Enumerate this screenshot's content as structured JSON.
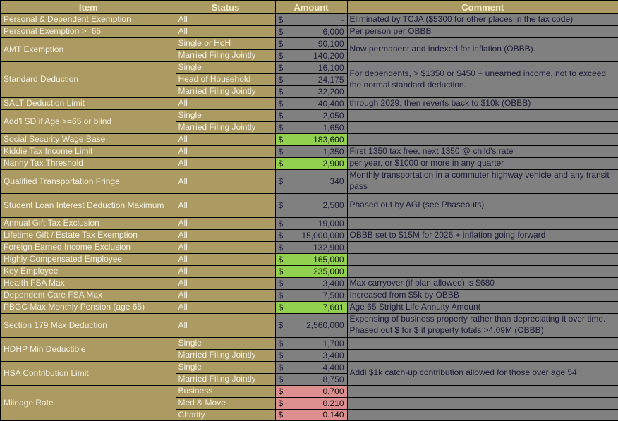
{
  "table": {
    "headers": [
      "Item",
      "Status",
      "Amount",
      "Comment"
    ],
    "currency": "$",
    "colors": {
      "khaki_bg": "#ab9a62",
      "header_text": "#f5eecd",
      "cell_text": "#f3efe0",
      "gray_bg": "#808080",
      "value_text": "#1b1b38",
      "green_bg": "#92d050",
      "pink_bg": "#dd8f8f",
      "border": "#000000"
    },
    "groups": [
      {
        "item": "Personal & Dependent Exemption",
        "rows": [
          {
            "status": "All",
            "amount": "-",
            "color": "gray"
          }
        ],
        "comments": [
          {
            "text": "Eliminated by TCJA ($5300 for other places in the tax code)",
            "span": 1
          }
        ]
      },
      {
        "item": "Personal Exemption >=65",
        "rows": [
          {
            "status": "All",
            "amount": "6,000",
            "color": "gray"
          }
        ],
        "comments": [
          {
            "text": "Per person per OBBB",
            "span": 1
          }
        ]
      },
      {
        "item": "AMT Exemption",
        "rows": [
          {
            "status": "Single or HoH",
            "amount": "90,100",
            "color": "gray"
          },
          {
            "status": "Married Filing Jointly",
            "amount": "140,200",
            "color": "gray"
          }
        ],
        "comments": [
          {
            "text": "Now permanent and indexed for inflation (OBBB).",
            "span": 2
          }
        ]
      },
      {
        "item": "Standard Deduction",
        "rows": [
          {
            "status": "Single",
            "amount": "16,100",
            "color": "gray"
          },
          {
            "status": "Head of Household",
            "amount": "24,175",
            "color": "gray"
          },
          {
            "status": "Married Filing Jointly",
            "amount": "32,200",
            "color": "gray"
          }
        ],
        "comments": [
          {
            "text": "For dependents, > $1350 or $450 + unearned income, not to exceed the normal standard deduction.",
            "span": 3
          }
        ]
      },
      {
        "item": "SALT Deduction Limit",
        "rows": [
          {
            "status": "All",
            "amount": "40,400",
            "color": "gray"
          }
        ],
        "comments": [
          {
            "text": "through 2029, then reverts back to $10k (OBBB)",
            "span": 1
          }
        ]
      },
      {
        "item": "Add'l SD if Age >=65 or blind",
        "rows": [
          {
            "status": "Single",
            "amount": "2,050",
            "color": "gray"
          },
          {
            "status": "Married Filing Jointly",
            "amount": "1,650",
            "color": "gray"
          }
        ],
        "comments": [
          {
            "text": "",
            "span": 1
          },
          {
            "text": "",
            "span": 1
          }
        ]
      },
      {
        "item": "Social Security Wage Base",
        "rows": [
          {
            "status": "All",
            "amount": "183,600",
            "color": "green"
          }
        ],
        "comments": [
          {
            "text": "",
            "span": 1
          }
        ]
      },
      {
        "item": "Kiddie Tax Income Limit",
        "rows": [
          {
            "status": "All",
            "amount": "1,350",
            "color": "gray"
          }
        ],
        "comments": [
          {
            "text": "First 1350 tax free, next 1350 @ child's rate",
            "span": 1
          }
        ]
      },
      {
        "item": "Nanny Tax Threshold",
        "rows": [
          {
            "status": "All",
            "amount": "2,900",
            "color": "green"
          }
        ],
        "comments": [
          {
            "text": "per year, or $1000 or more in any quarter",
            "span": 1
          }
        ]
      },
      {
        "item": "Qualified Transportation Fringe",
        "rows": [
          {
            "status": "All",
            "amount": "340",
            "color": "gray",
            "h": 2
          }
        ],
        "comments": [
          {
            "text": "Monthly transportation in a commuter highway vehicle and any transit pass",
            "span": 1
          }
        ]
      },
      {
        "item": "Student Loan Interest Deduction Maximum",
        "rows": [
          {
            "status": "All",
            "amount": "2,500",
            "color": "gray",
            "h": 2
          }
        ],
        "comments": [
          {
            "text": "Phased out by AGI (see Phaseouts)",
            "span": 1
          }
        ]
      },
      {
        "item": "Annual Gift Tax Exclusion",
        "rows": [
          {
            "status": "All",
            "amount": "19,000",
            "color": "gray"
          }
        ],
        "comments": [
          {
            "text": "",
            "span": 1
          }
        ]
      },
      {
        "item": "Lifetime Gift / Estate Tax Exemption",
        "rows": [
          {
            "status": "All",
            "amount": "15,000,000",
            "color": "gray"
          }
        ],
        "comments": [
          {
            "text": "OBBB set to $15M for 2026 + inflation going forward",
            "span": 1
          }
        ]
      },
      {
        "item": "Foreign Earned Income Exclusion",
        "rows": [
          {
            "status": "All",
            "amount": "132,900",
            "color": "gray"
          }
        ],
        "comments": [
          {
            "text": "",
            "span": 1
          }
        ]
      },
      {
        "item": "Highly Compensated Employee",
        "rows": [
          {
            "status": "All",
            "amount": "165,000",
            "color": "green"
          }
        ],
        "comments": [
          {
            "text": "",
            "span": 1
          }
        ]
      },
      {
        "item": "Key Employee",
        "rows": [
          {
            "status": "All",
            "amount": "235,000",
            "color": "green"
          }
        ],
        "comments": [
          {
            "text": "",
            "span": 1
          }
        ]
      },
      {
        "item": "Health FSA Max",
        "rows": [
          {
            "status": "All",
            "amount": "3,400",
            "color": "gray"
          }
        ],
        "comments": [
          {
            "text": "Max carryover (if plan allowed) is $680",
            "span": 1
          }
        ]
      },
      {
        "item": "Dependent Care FSA Max",
        "rows": [
          {
            "status": "All",
            "amount": "7,500",
            "color": "gray"
          }
        ],
        "comments": [
          {
            "text": "Increased from $5k by OBBB",
            "span": 1
          }
        ]
      },
      {
        "item": "PBGC Max Monthly Pension (age 65)",
        "rows": [
          {
            "status": "All",
            "amount": "7,601",
            "color": "green"
          }
        ],
        "comments": [
          {
            "text": "Age 65 Stright Life Annuity Amount",
            "span": 1
          }
        ]
      },
      {
        "item": "Section 179 Max Deduction",
        "rows": [
          {
            "status": "All",
            "amount": "2,560,000",
            "color": "gray",
            "h": 2
          }
        ],
        "comments": [
          {
            "text": "Expensing of business property rather than depreciating it over time.  Phased out $ for $ if property totals >4.09M (OBBB)",
            "span": 1
          }
        ]
      },
      {
        "item": "HDHP Min Deductible",
        "rows": [
          {
            "status": "Single",
            "amount": "1,700",
            "color": "gray"
          },
          {
            "status": "Married Filing Jointly",
            "amount": "3,400",
            "color": "gray"
          }
        ],
        "comments": [
          {
            "text": "",
            "span": 1
          },
          {
            "text": "",
            "span": 1
          }
        ]
      },
      {
        "item": "HSA Contribution Limit",
        "rows": [
          {
            "status": "Single",
            "amount": "4,400",
            "color": "gray"
          },
          {
            "status": "Married Filing Jointly",
            "amount": "8,750",
            "color": "gray"
          }
        ],
        "comments": [
          {
            "text": "Addl $1k catch-up contribution allowed for those over age 54",
            "span": 2
          }
        ]
      },
      {
        "item": "Mileage Rate",
        "rows": [
          {
            "status": "Business",
            "amount": "0.700",
            "color": "pink"
          },
          {
            "status": "Med & Move",
            "amount": "0.210",
            "color": "pink"
          },
          {
            "status": "Charity",
            "amount": "0.140",
            "color": "pink"
          }
        ],
        "comments": [
          {
            "text": "",
            "span": 1
          },
          {
            "text": "",
            "span": 1
          },
          {
            "text": "",
            "span": 1
          }
        ]
      }
    ]
  }
}
